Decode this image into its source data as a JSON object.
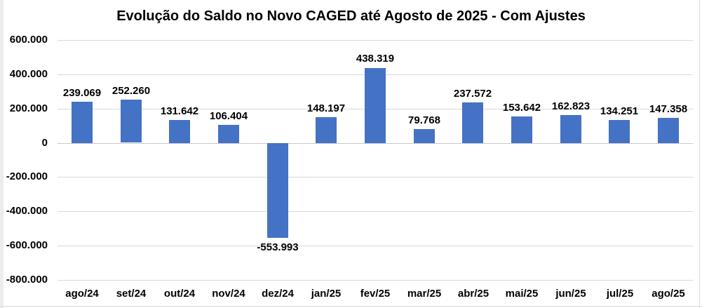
{
  "title": "Evolução do Saldo no Novo CAGED até Agosto de 2025 - Com Ajustes",
  "chart_data": {
    "type": "bar",
    "title": "Evolução do Saldo no Novo CAGED até Agosto de 2025 - Com Ajustes",
    "xlabel": "",
    "ylabel": "",
    "categories": [
      "ago/24",
      "set/24",
      "out/24",
      "nov/24",
      "dez/24",
      "jan/25",
      "fev/25",
      "mar/25",
      "abr/25",
      "mai/25",
      "jun/25",
      "jul/25",
      "ago/25"
    ],
    "values": [
      239069,
      252260,
      131642,
      106404,
      -553993,
      148197,
      438319,
      79768,
      237572,
      153642,
      162823,
      134251,
      147358
    ],
    "data_labels": [
      "239.069",
      "252.260",
      "131.642",
      "106.404",
      "-553.993",
      "148.197",
      "438.319",
      "79.768",
      "237.572",
      "153.642",
      "162.823",
      "134.251",
      "147.358"
    ],
    "y_tick_labels": [
      "600.000",
      "400.000",
      "200.000",
      "0",
      "-200.000",
      "-400.000",
      "-600.000",
      "-800.000"
    ],
    "y_tick_values": [
      600000,
      400000,
      200000,
      0,
      -200000,
      -400000,
      -600000,
      -800000
    ],
    "ylim": [
      -800000,
      600000
    ],
    "grid": true,
    "legend": "none",
    "colors": {
      "bar": "#4472C4",
      "gridline": "#d9d9d9",
      "zero_axis_line": "#c9c9c9",
      "text": "#000000"
    }
  }
}
